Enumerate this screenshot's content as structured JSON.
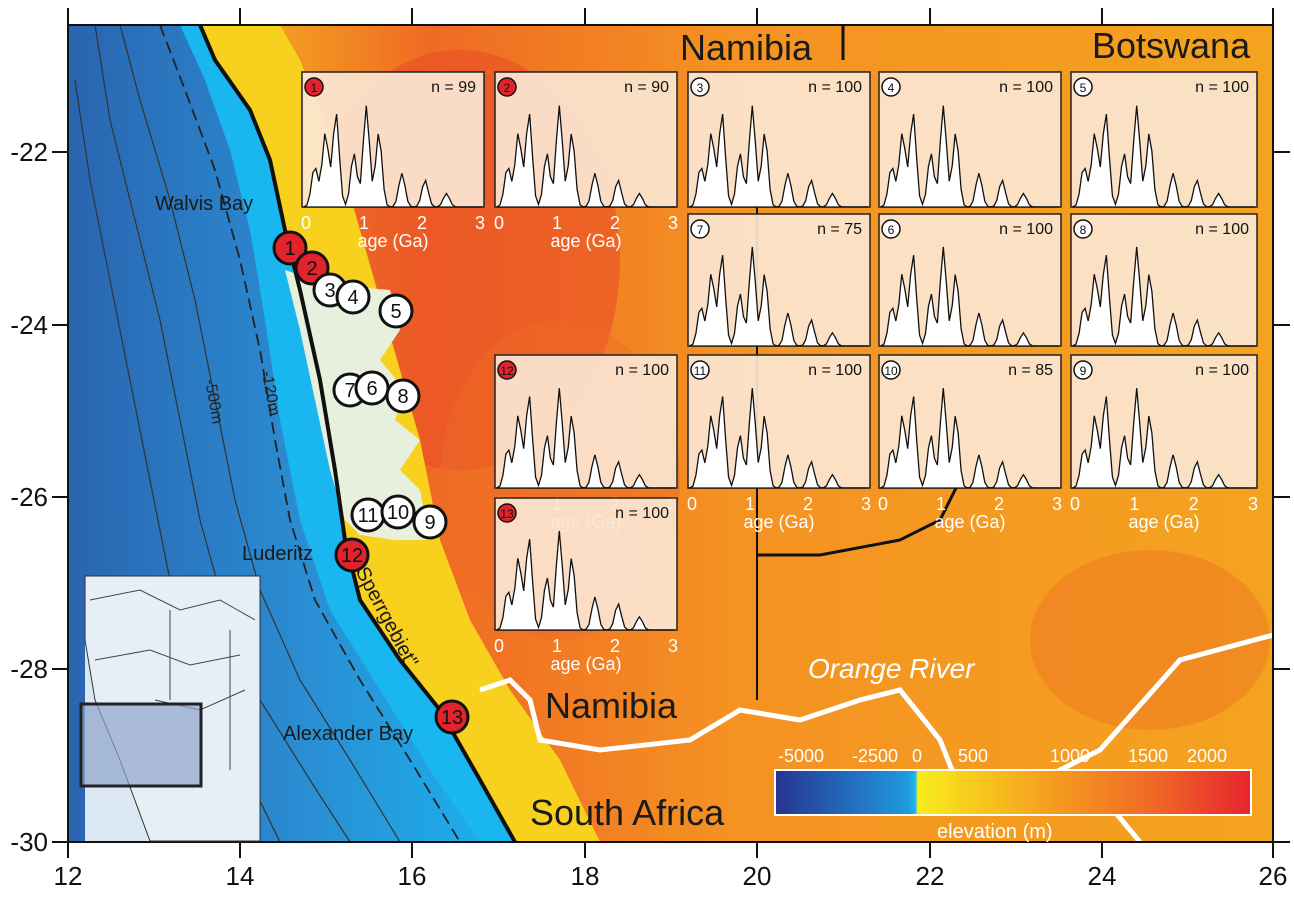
{
  "map": {
    "x_ticks": [
      "12",
      "14",
      "16",
      "18",
      "20",
      "22",
      "24",
      "26"
    ],
    "y_ticks": [
      "-22",
      "-24",
      "-26",
      "-28",
      "-30"
    ],
    "countries": {
      "namibia_top": "Namibia",
      "botswana": "Botswana",
      "namibia_bottom": "Namibia",
      "south_africa": "South Africa"
    },
    "places": {
      "walvis_bay": "Walvis Bay",
      "luderitz": "Luderitz",
      "alexander_bay": "Alexander Bay",
      "sperrgebiet": "\"Sperrgebiet\"",
      "orange_river": "Orange River"
    },
    "contours": {
      "c120": "-120m",
      "c500": "-500m"
    },
    "colors": {
      "ocean_deep": "#2a6fb8",
      "ocean_shallow": "#1ab0ee",
      "land_low": "#f6d51e",
      "land_mid": "#f5a020",
      "land_high": "#e8432a",
      "sand_sea": "#e6f0dc",
      "site_red": "#e3232b"
    },
    "sites": [
      {
        "label": "1",
        "color": "red"
      },
      {
        "label": "2",
        "color": "red"
      },
      {
        "label": "3",
        "color": "white"
      },
      {
        "label": "4",
        "color": "white"
      },
      {
        "label": "5",
        "color": "white"
      },
      {
        "label": "7",
        "color": "white"
      },
      {
        "label": "6",
        "color": "white"
      },
      {
        "label": "8",
        "color": "white"
      },
      {
        "label": "11",
        "color": "white"
      },
      {
        "label": "10",
        "color": "white"
      },
      {
        "label": "9",
        "color": "white"
      },
      {
        "label": "12",
        "color": "red"
      },
      {
        "label": "13",
        "color": "red"
      }
    ]
  },
  "panels": [
    {
      "id": "1",
      "n": "n = 99",
      "red": true
    },
    {
      "id": "2",
      "n": "n = 90",
      "red": true
    },
    {
      "id": "3",
      "n": "n = 100",
      "red": false
    },
    {
      "id": "4",
      "n": "n = 100",
      "red": false
    },
    {
      "id": "5",
      "n": "n = 100",
      "red": false
    },
    {
      "id": "7",
      "n": "n = 75",
      "red": false
    },
    {
      "id": "6",
      "n": "n = 100",
      "red": false
    },
    {
      "id": "8",
      "n": "n = 100",
      "red": false
    },
    {
      "id": "12",
      "n": "n = 100",
      "red": true
    },
    {
      "id": "11",
      "n": "n = 100",
      "red": false
    },
    {
      "id": "10",
      "n": "n = 85",
      "red": false
    },
    {
      "id": "9",
      "n": "n = 100",
      "red": false
    },
    {
      "id": "13",
      "n": "n = 100",
      "red": true
    }
  ],
  "panel_axis": {
    "ticks": [
      "0",
      "1",
      "2",
      "3"
    ],
    "label": "age (Ga)"
  },
  "colorbar": {
    "ticks": [
      "-5000",
      "-2500",
      "0",
      "500",
      "1000",
      "1500",
      "2000"
    ],
    "label": "elevation (m)"
  }
}
